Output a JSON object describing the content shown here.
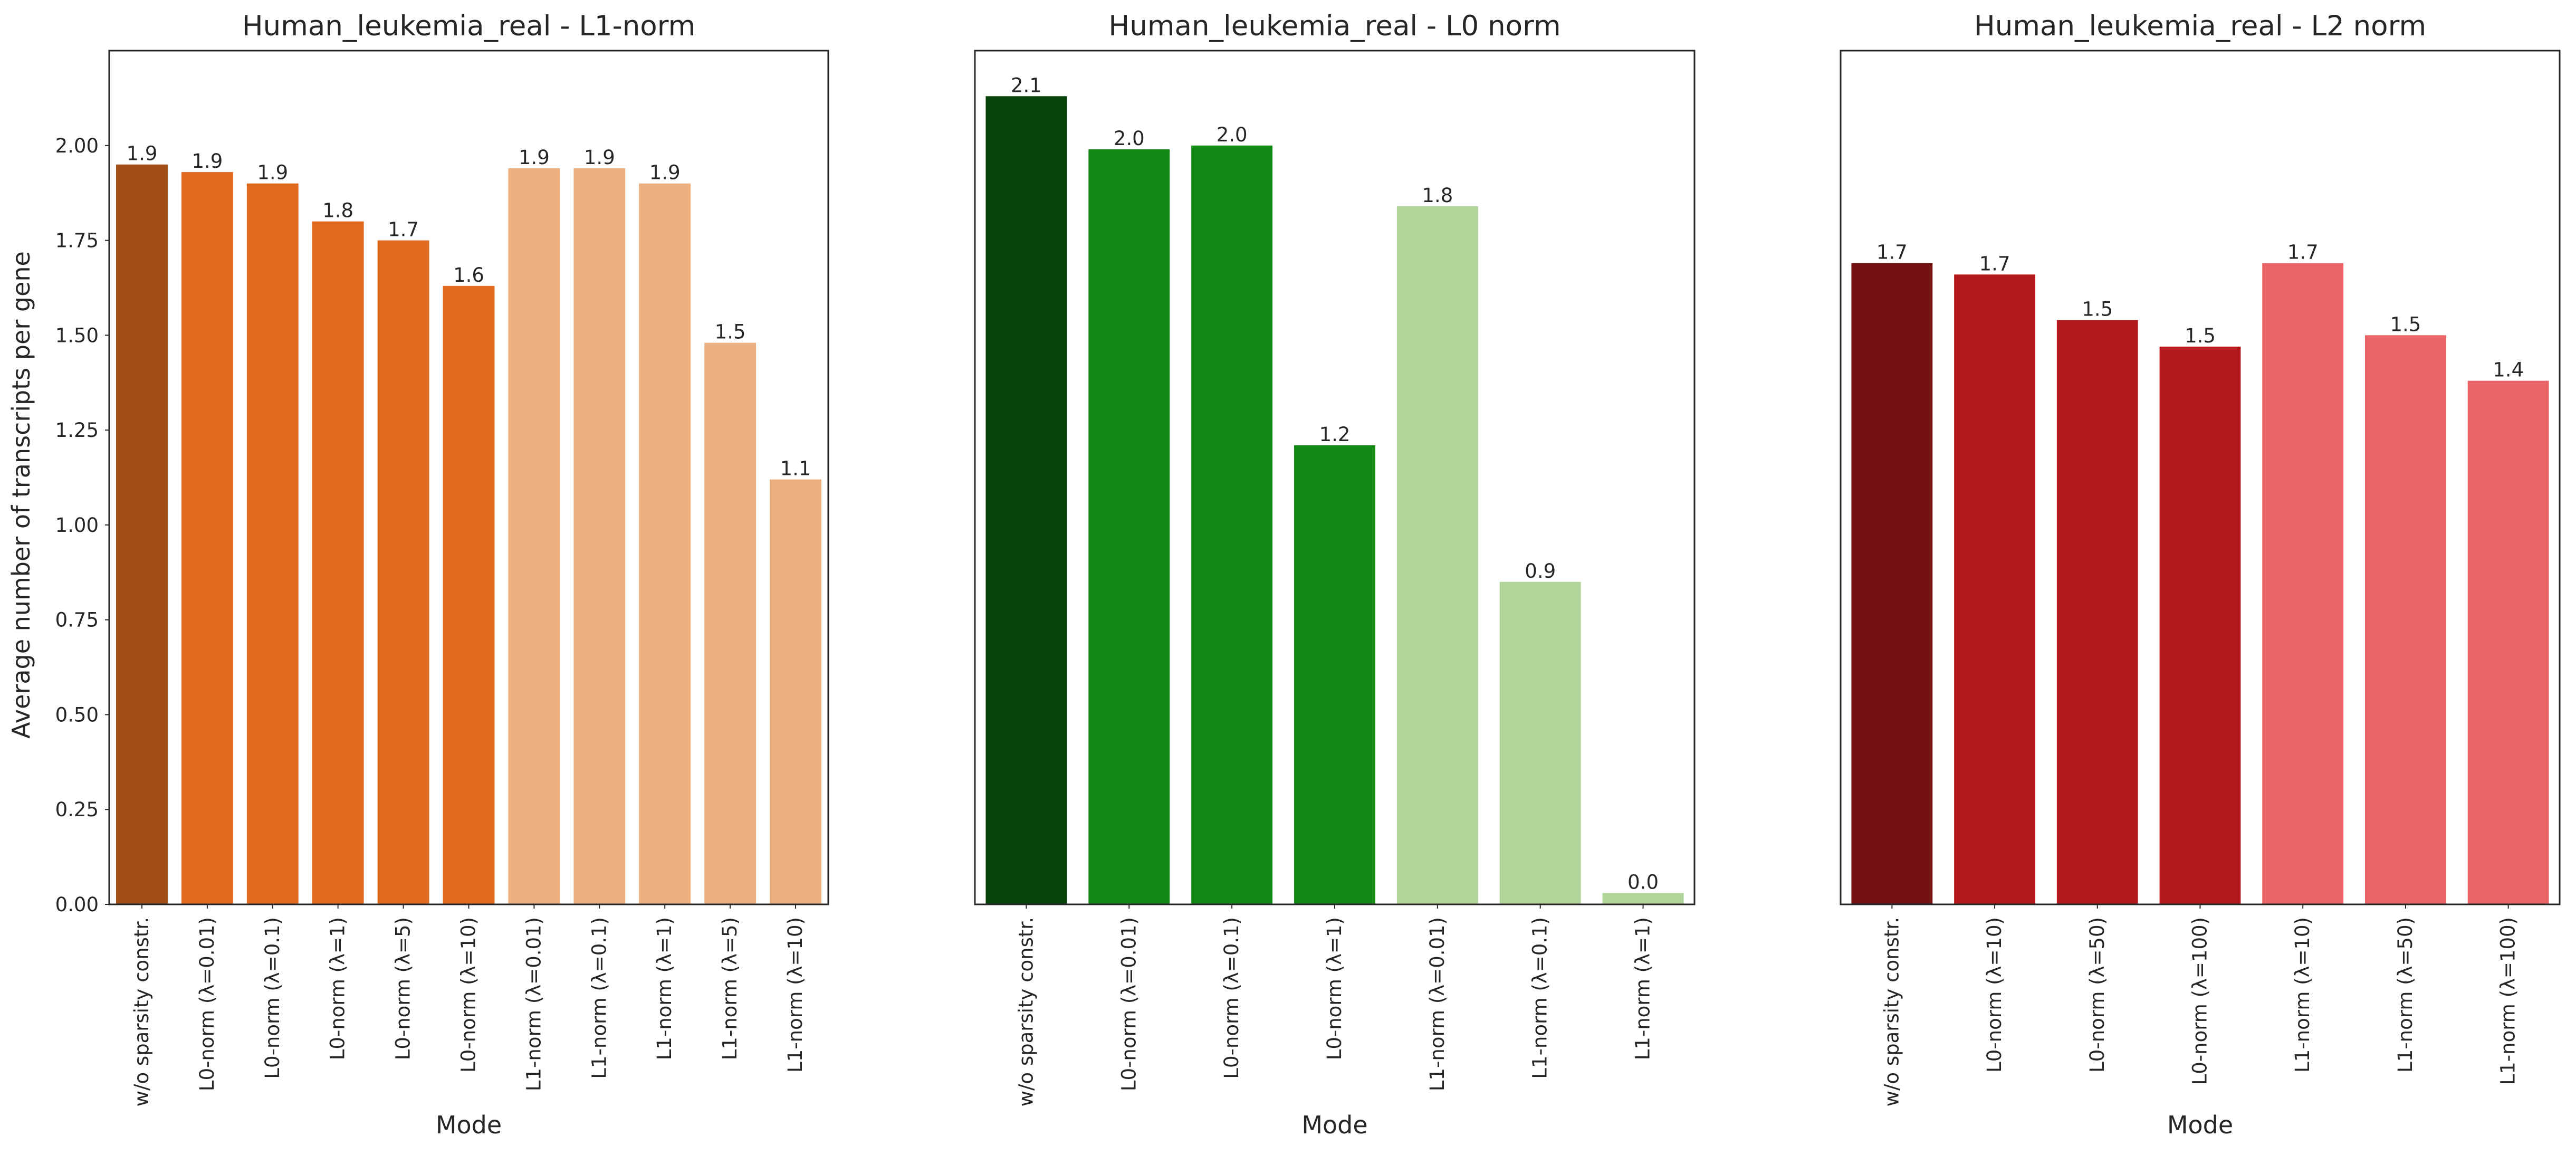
{
  "figure": {
    "ylabel": "Average number of transcripts per gene"
  },
  "chart_data": [
    {
      "type": "bar",
      "title": "Human_leukemia_real - L1-norm",
      "xlabel": "Mode",
      "ylabel": "Average number of transcripts per gene",
      "ylim": [
        0,
        2.25
      ],
      "yticks": [
        "0.00",
        "0.25",
        "0.50",
        "0.75",
        "1.00",
        "1.25",
        "1.50",
        "1.75",
        "2.00"
      ],
      "grid": false,
      "categories": [
        "w/o sparsity constr.",
        "L0-norm (λ=0.01)",
        "L0-norm (λ=0.1)",
        "L0-norm (λ=1)",
        "L0-norm (λ=5)",
        "L0-norm (λ=10)",
        "L1-norm (λ=0.01)",
        "L1-norm (λ=0.1)",
        "L1-norm (λ=1)",
        "L1-norm (λ=5)",
        "L1-norm (λ=10)"
      ],
      "values": [
        1.95,
        1.93,
        1.9,
        1.8,
        1.75,
        1.63,
        1.94,
        1.94,
        1.9,
        1.48,
        1.12
      ],
      "data_labels": [
        "1.9",
        "1.9",
        "1.9",
        "1.8",
        "1.7",
        "1.6",
        "1.9",
        "1.9",
        "1.9",
        "1.5",
        "1.1"
      ],
      "colors": [
        "#a04e14",
        "#e16b21",
        "#e16b21",
        "#e16b21",
        "#e16b21",
        "#e16b21",
        "#efb07f",
        "#efb07f",
        "#efb07f",
        "#efb07f",
        "#efb07f"
      ]
    },
    {
      "type": "bar",
      "title": "Human_leukemia_real - L0 norm",
      "xlabel": "Mode",
      "ylim": [
        0,
        2.25
      ],
      "grid": false,
      "categories": [
        "w/o sparsity constr.",
        "L0-norm (λ=0.01)",
        "L0-norm (λ=0.1)",
        "L0-norm (λ=1)",
        "L1-norm (λ=0.01)",
        "L1-norm (λ=0.1)",
        "L1-norm (λ=1)"
      ],
      "values": [
        2.13,
        1.99,
        2.0,
        1.21,
        1.84,
        0.85,
        0.03
      ],
      "data_labels": [
        "2.1",
        "2.0",
        "2.0",
        "1.2",
        "1.8",
        "0.9",
        "0.0"
      ],
      "colors": [
        "#07440a",
        "#148916",
        "#148916",
        "#148916",
        "#b1d49b",
        "#b1d49b",
        "#b1d49b"
      ]
    },
    {
      "type": "bar",
      "title": "Human_leukemia_real - L2 norm",
      "xlabel": "Mode",
      "ylim": [
        0,
        2.25
      ],
      "grid": false,
      "categories": [
        "w/o sparsity constr.",
        "L0-norm (λ=10)",
        "L0-norm (λ=50)",
        "L0-norm (λ=100)",
        "L1-norm (λ=10)",
        "L1-norm (λ=50)",
        "L1-norm (λ=100)"
      ],
      "values": [
        1.69,
        1.66,
        1.54,
        1.47,
        1.69,
        1.5,
        1.38
      ],
      "data_labels": [
        "1.7",
        "1.7",
        "1.5",
        "1.5",
        "1.7",
        "1.5",
        "1.4"
      ],
      "colors": [
        "#721012",
        "#b3191c",
        "#b3191c",
        "#b3191c",
        "#e96466",
        "#e96466",
        "#e96466"
      ]
    }
  ]
}
